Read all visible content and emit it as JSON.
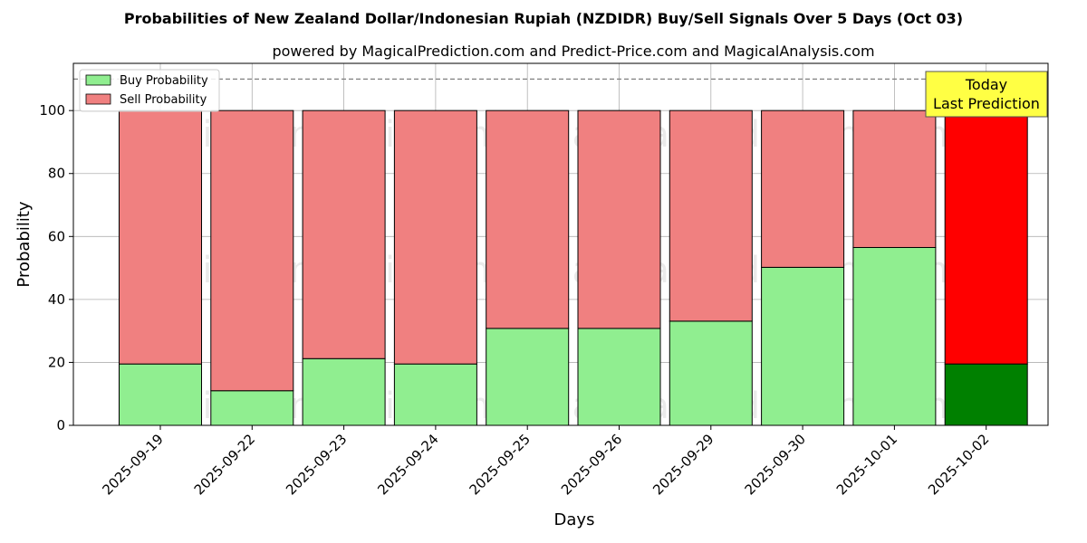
{
  "chart_data": {
    "type": "bar",
    "title": "Probabilities of New Zealand Dollar/Indonesian Rupiah (NZDIDR) Buy/Sell Signals Over 5 Days (Oct 03)",
    "subtitle": "powered by MagicalPrediction.com and Predict-Price.com and MagicalAnalysis.com",
    "xlabel": "Days",
    "ylabel": "Probability",
    "ylim": [
      0,
      115
    ],
    "yticks": [
      0,
      20,
      40,
      60,
      80,
      100
    ],
    "reference_line": 110,
    "grid": true,
    "legend_position": "top-left",
    "categories": [
      "2025-09-19",
      "2025-09-22",
      "2025-09-23",
      "2025-09-24",
      "2025-09-25",
      "2025-09-26",
      "2025-09-29",
      "2025-09-30",
      "2025-10-01",
      "2025-10-02"
    ],
    "series": [
      {
        "name": "Buy Probability",
        "values": [
          19.5,
          11,
          21.2,
          19.5,
          30.8,
          30.8,
          33.1,
          50.2,
          56.5,
          19.5
        ]
      },
      {
        "name": "Sell Probability",
        "values": [
          80.5,
          89,
          78.8,
          80.5,
          69.2,
          69.2,
          66.9,
          49.8,
          43.5,
          80.5
        ]
      }
    ],
    "colors": {
      "buy": "#90ee90",
      "sell": "#f08080",
      "buy_last": "#008000",
      "sell_last": "#ff0000",
      "annotation_fill": "#ffff44"
    },
    "annotation": {
      "line1": "Today",
      "line2": "Last Prediction"
    },
    "watermarks": [
      "MagicalAnalysis.com",
      "MagicalPrediction.com"
    ]
  }
}
